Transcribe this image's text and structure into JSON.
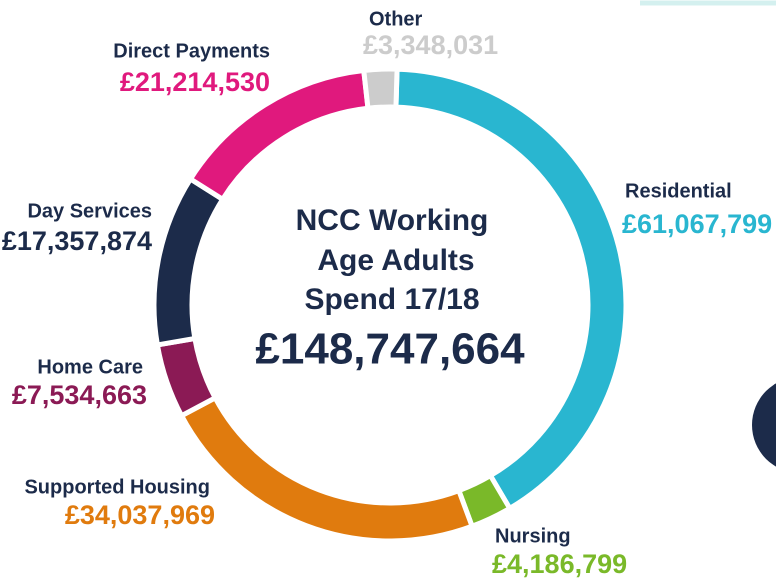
{
  "chart_data": {
    "type": "donut",
    "title_lines": [
      "NCC Working",
      "Age Adults",
      "Spend 17/18"
    ],
    "total": "£148,747,664",
    "categories": [
      "Residential",
      "Nursing",
      "Supported Housing",
      "Home Care",
      "Day Services",
      "Direct Payments",
      "Other"
    ],
    "values": [
      61067799,
      4186799,
      34037969,
      7534663,
      17357874,
      21214530,
      3348031
    ],
    "value_labels": [
      "£61,067,799",
      "£4,186,799",
      "£34,037,969",
      "£7,534,663",
      "£17,357,874",
      "£21,214,530",
      "£3,348,031"
    ],
    "colors": [
      "#29b6d0",
      "#7ab929",
      "#e07b0e",
      "#8b1a55",
      "#1c2b4a",
      "#e0197d",
      "#cccccc"
    ]
  }
}
